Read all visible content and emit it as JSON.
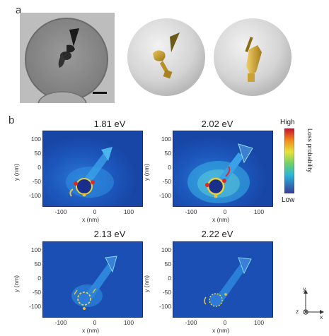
{
  "panel_a": {
    "letter": "a",
    "micrograph_desc": "TEM micrograph of nanoparticle on holey carbon grid",
    "model_1_desc": "3D rendered model (view 1)",
    "model_2_desc": "3D rendered model (view 2)"
  },
  "panel_b": {
    "letter": "b",
    "maps": [
      {
        "title": "1.81 eV"
      },
      {
        "title": "2.02 eV"
      },
      {
        "title": "2.13 eV"
      },
      {
        "title": "2.22 eV"
      }
    ],
    "x_label": "x (nm)",
    "y_label": "y (nm)",
    "x_ticks": [
      "-100",
      "0",
      "100"
    ],
    "y_ticks": [
      "100",
      "50",
      "0",
      "-50",
      "-100"
    ],
    "colorbar": {
      "high": "High",
      "low": "Low",
      "title": "Loss probability"
    },
    "axes_glyph": {
      "y": "y",
      "z": "z",
      "x": "x"
    }
  },
  "colors": {
    "background_blue": "#1b4fb4",
    "glow": "#33c8e8",
    "hot": "#e02a1e",
    "gold": "#c9a233"
  }
}
